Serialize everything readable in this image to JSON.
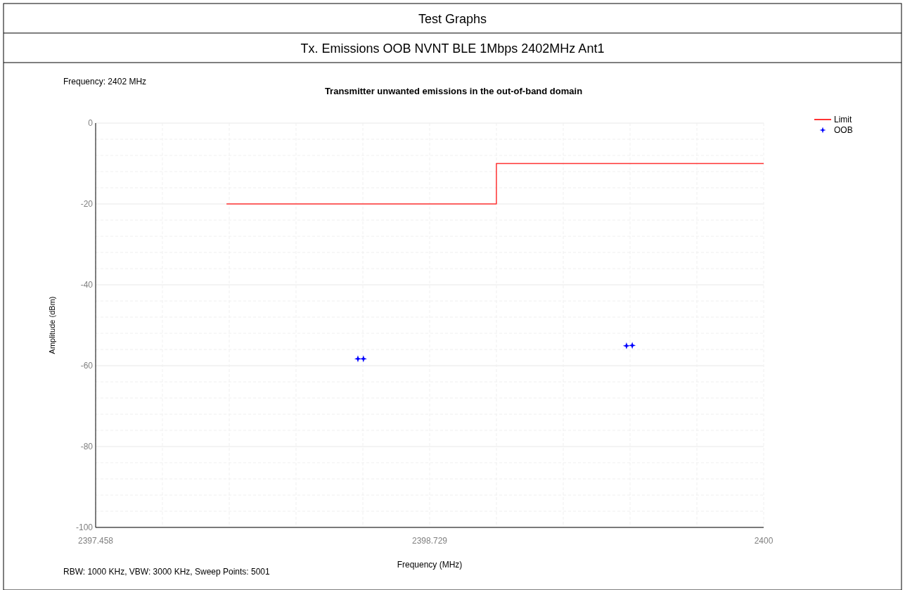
{
  "chart_data": {
    "type": "line",
    "title": "Transmitter unwanted emissions in the out-of-band domain",
    "xlabel": "Frequency (MHz)",
    "ylabel": "Amplitude (dBm)",
    "annotations": [
      "Test Graphs",
      "Tx. Emissions OOB NVNT BLE 1Mbps 2402MHz Ant1",
      "Frequency: 2402 MHz",
      "RBW: 1000 KHz,  VBW: 3000 KHz,  Sweep Points: 5001"
    ],
    "xlim": [
      2397.458,
      2400
    ],
    "ylim": [
      -100,
      0
    ],
    "xticks": [
      2397.458,
      {
        "value": 2397.7122,
        "label": null
      },
      {
        "value": 2397.9664,
        "label": null
      },
      {
        "value": 2398.2206,
        "label": null
      },
      {
        "value": 2398.4748,
        "label": null
      },
      2398.729,
      {
        "value": 2398.9832,
        "label": null
      },
      {
        "value": 2399.2374,
        "label": null
      },
      {
        "value": 2399.4916,
        "label": null
      },
      {
        "value": 2399.7458,
        "label": null
      },
      2400
    ],
    "yticks": [
      -100,
      {
        "value": -96,
        "label": null
      },
      {
        "value": -92,
        "label": null
      },
      {
        "value": -88,
        "label": null
      },
      {
        "value": -84,
        "label": null
      },
      -80,
      {
        "value": -76,
        "label": null
      },
      {
        "value": -72,
        "label": null
      },
      {
        "value": -68,
        "label": null
      },
      {
        "value": -64,
        "label": null
      },
      -60,
      {
        "value": -56,
        "label": null
      },
      {
        "value": -52,
        "label": null
      },
      {
        "value": -48,
        "label": null
      },
      {
        "value": -44,
        "label": null
      },
      -40,
      {
        "value": -36,
        "label": null
      },
      {
        "value": -32,
        "label": null
      },
      {
        "value": -28,
        "label": null
      },
      {
        "value": -24,
        "label": null
      },
      -20,
      {
        "value": -16,
        "label": null
      },
      {
        "value": -12,
        "label": null
      },
      {
        "value": -8,
        "label": null
      },
      {
        "value": -4,
        "label": null
      },
      0
    ],
    "grid": true,
    "legend": "top right",
    "series": [
      {
        "name": "Limit",
        "color": "#ff3333",
        "x": [
          2397.956,
          2398.983,
          2398.983,
          2400
        ],
        "values": [
          -20,
          -20,
          -10,
          -10
        ]
      },
      {
        "name": "OOB",
        "type": "scatter",
        "marker": "star",
        "color": "#0000ff",
        "x": [
          2398.456,
          2398.477,
          2399.478,
          2399.5
        ],
        "values": [
          -58.3,
          -58.3,
          -55.1,
          -55.0
        ]
      }
    ]
  }
}
